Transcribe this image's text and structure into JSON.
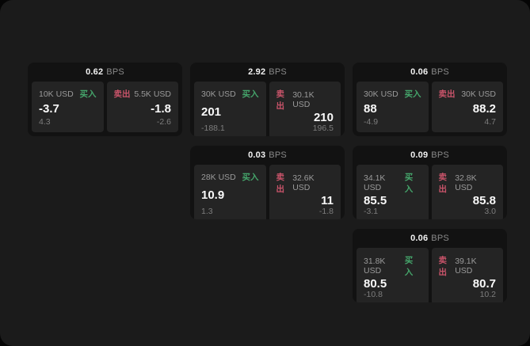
{
  "labels": {
    "bps_unit": "BPS",
    "buy": "买入",
    "sell": "卖出"
  },
  "colors": {
    "buy": "#45a56b",
    "sell": "#c9546a",
    "panel_bg": "#1b1b1b",
    "card_bg": "#121212",
    "tile_bg": "#242424"
  },
  "cards": [
    {
      "row": 1,
      "col": 1,
      "bps": "0.62",
      "buy": {
        "amount": "10K USD",
        "value": "-3.7",
        "sub": "4.3"
      },
      "sell": {
        "amount": "5.5K USD",
        "value": "-1.8",
        "sub": "-2.6"
      }
    },
    {
      "row": 1,
      "col": 2,
      "bps": "2.92",
      "buy": {
        "amount": "30K USD",
        "value": "201",
        "sub": "-188.1"
      },
      "sell": {
        "amount": "30.1K USD",
        "value": "210",
        "sub": "196.5"
      }
    },
    {
      "row": 1,
      "col": 3,
      "bps": "0.06",
      "buy": {
        "amount": "30K USD",
        "value": "88",
        "sub": "-4.9"
      },
      "sell": {
        "amount": "30K USD",
        "value": "88.2",
        "sub": "4.7"
      }
    },
    {
      "row": 2,
      "col": 2,
      "bps": "0.03",
      "buy": {
        "amount": "28K USD",
        "value": "10.9",
        "sub": "1.3"
      },
      "sell": {
        "amount": "32.6K USD",
        "value": "11",
        "sub": "-1.8"
      }
    },
    {
      "row": 2,
      "col": 3,
      "bps": "0.09",
      "buy": {
        "amount": "34.1K USD",
        "value": "85.5",
        "sub": "-3.1"
      },
      "sell": {
        "amount": "32.8K USD",
        "value": "85.8",
        "sub": "3.0"
      }
    },
    {
      "row": 3,
      "col": 3,
      "bps": "0.06",
      "buy": {
        "amount": "31.8K USD",
        "value": "80.5",
        "sub": "-10.8"
      },
      "sell": {
        "amount": "39.1K USD",
        "value": "80.7",
        "sub": "10.2"
      }
    }
  ]
}
